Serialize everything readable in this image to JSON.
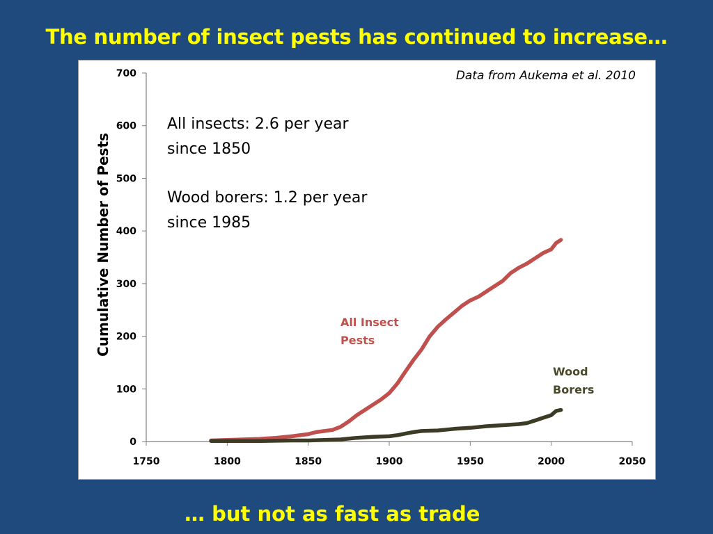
{
  "slide": {
    "title": "The number of insect pests has continued to increase…",
    "footer": "…  but not as fast as trade"
  },
  "colors": {
    "background": "#1f4a7e",
    "title_text": "#ffff00",
    "all_insects": "#c0504d",
    "wood_borers": "#3b3b26"
  },
  "chart_data": {
    "type": "line",
    "title": "",
    "xlabel": "",
    "ylabel": "Cumulative Number of Pests",
    "xlim": [
      1750,
      2050
    ],
    "ylim": [
      0,
      700
    ],
    "x_ticks": [
      1750,
      1800,
      1850,
      1900,
      1950,
      2000,
      2050
    ],
    "y_ticks": [
      0,
      100,
      200,
      300,
      400,
      500,
      600,
      700
    ],
    "grid": false,
    "annotations": {
      "source": "Data from Aukema et al. 2010",
      "note_line1": "All insects: 2.6 per year",
      "note_line2": "since 1850",
      "note_line3": "Wood borers: 1.2 per year",
      "note_line4": "since 1985"
    },
    "series": [
      {
        "name": "All Insect Pests",
        "label_line1": "All Insect",
        "label_line2": "Pests",
        "color": "#c0504d",
        "x": [
          1790,
          1800,
          1810,
          1820,
          1830,
          1840,
          1850,
          1855,
          1860,
          1865,
          1870,
          1875,
          1880,
          1885,
          1890,
          1895,
          1900,
          1905,
          1910,
          1915,
          1920,
          1925,
          1930,
          1935,
          1940,
          1945,
          1950,
          1955,
          1960,
          1965,
          1970,
          1975,
          1980,
          1985,
          1990,
          1995,
          2000,
          2003,
          2006
        ],
        "values": [
          2,
          3,
          4,
          5,
          7,
          10,
          14,
          18,
          20,
          22,
          28,
          38,
          50,
          60,
          70,
          80,
          92,
          110,
          133,
          155,
          175,
          200,
          218,
          232,
          245,
          258,
          268,
          275,
          285,
          295,
          305,
          320,
          330,
          338,
          348,
          358,
          365,
          377,
          383
        ]
      },
      {
        "name": "Wood Borers",
        "label_line1": "Wood",
        "label_line2": "Borers",
        "color": "#3b3b26",
        "x": [
          1790,
          1800,
          1820,
          1840,
          1850,
          1860,
          1870,
          1880,
          1890,
          1900,
          1905,
          1910,
          1915,
          1920,
          1930,
          1940,
          1950,
          1960,
          1970,
          1980,
          1985,
          1990,
          1995,
          2000,
          2003,
          2006
        ],
        "values": [
          1,
          1,
          1,
          2,
          2,
          3,
          4,
          7,
          9,
          10,
          12,
          15,
          18,
          20,
          21,
          24,
          26,
          29,
          31,
          33,
          35,
          40,
          45,
          50,
          58,
          60
        ]
      }
    ]
  }
}
